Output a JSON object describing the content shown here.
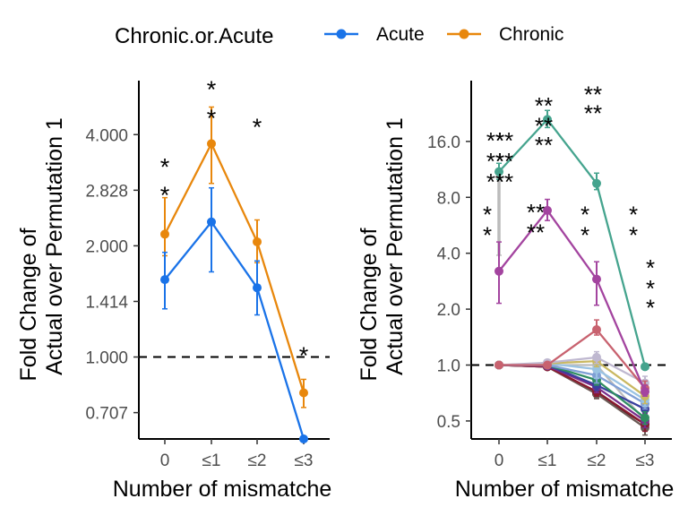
{
  "legend": {
    "title": "Chronic.or.Acute",
    "items": [
      {
        "label": "Acute",
        "color": "#1A73E8"
      },
      {
        "label": "Chronic",
        "color": "#E8870C"
      }
    ]
  },
  "chart_data": [
    {
      "type": "line",
      "xlabel": "Number of mismatche",
      "ylabel": [
        "Fold Change of",
        "Actual over Permutation 1"
      ],
      "y_scale": "log2",
      "ylim": [
        0.6,
        5.6
      ],
      "x": [
        "0",
        "≤1",
        "≤2",
        "≤3"
      ],
      "y_ticks": [
        0.707,
        1.0,
        1.414,
        2.0,
        2.828,
        4.0
      ],
      "y_tick_labels": [
        "0.707",
        "1.000",
        "1.414",
        "2.000",
        "2.828",
        "4.000"
      ],
      "reference_line": 1.0,
      "series": [
        {
          "name": "Acute",
          "color": "#1A73E8",
          "values": [
            1.62,
            2.32,
            1.54,
            0.6
          ],
          "errors_low": [
            1.35,
            1.7,
            1.3,
            0.6
          ],
          "errors_high": [
            1.92,
            2.87,
            1.82,
            0.6
          ]
        },
        {
          "name": "Chronic",
          "color": "#E8870C",
          "values": [
            2.15,
            3.78,
            2.05,
            0.8
          ],
          "errors_low": [
            1.88,
            2.95,
            1.8,
            0.73
          ],
          "errors_high": [
            2.7,
            4.75,
            2.35,
            0.87
          ]
        }
      ],
      "annotations": [
        {
          "x": "0",
          "y": 3.4,
          "text": "*"
        },
        {
          "x": "0",
          "y": 2.85,
          "text": "*"
        },
        {
          "x": "≤1",
          "y": 5.5,
          "text": "*"
        },
        {
          "x": "≤1",
          "y": 4.6,
          "text": "*"
        },
        {
          "x": "≤2",
          "y": 4.35,
          "text": "*"
        },
        {
          "x": "≤3",
          "y": 1.05,
          "text": "*"
        }
      ]
    },
    {
      "type": "line",
      "xlabel": "Number of mismatche",
      "ylabel": [
        "Fold Change of",
        "Actual over Permutation 1"
      ],
      "y_scale": "log2",
      "ylim": [
        0.4,
        34
      ],
      "x": [
        "0",
        "≤1",
        "≤2",
        "≤3"
      ],
      "y_ticks": [
        0.5,
        1.0,
        2.0,
        4.0,
        8.0,
        16.0
      ],
      "y_tick_labels": [
        "0.5",
        "1.0",
        "2.0",
        "4.0",
        "8.0",
        "16.0"
      ],
      "reference_line": 1.0,
      "series": [
        {
          "color": "#45A48E",
          "values": [
            11.0,
            21.0,
            9.5,
            0.98
          ],
          "errors_low": [
            10.0,
            19.0,
            8.8,
            0.98
          ],
          "errors_high": [
            12.2,
            23.5,
            10.8,
            0.98
          ]
        },
        {
          "color": "#A3449F",
          "values": [
            3.2,
            6.8,
            2.9,
            0.72
          ],
          "errors_low": [
            2.15,
            6.0,
            2.1,
            0.68
          ],
          "errors_high": [
            4.6,
            7.8,
            3.6,
            0.78
          ]
        },
        {
          "color": "#C8626F",
          "values": [
            1.0,
            1.0,
            1.55,
            0.75
          ],
          "errors_low": [
            1.0,
            1.0,
            1.45,
            0.7
          ],
          "errors_high": [
            1.0,
            1.0,
            1.75,
            0.82
          ]
        },
        {
          "color": "#BFB8D0",
          "values": [
            1.0,
            1.03,
            1.1,
            0.8
          ],
          "errors_low": [
            1.0,
            1.0,
            1.02,
            0.74
          ],
          "errors_high": [
            1.0,
            1.06,
            1.18,
            0.87
          ]
        },
        {
          "color": "#C9B861",
          "values": [
            1.0,
            1.02,
            1.05,
            0.68
          ],
          "errors_low": [
            1.0,
            1.0,
            0.98,
            0.62
          ],
          "errors_high": [
            1.0,
            1.04,
            1.12,
            0.74
          ]
        },
        {
          "color": "#9AC3E3",
          "values": [
            1.0,
            1.02,
            0.95,
            0.65
          ],
          "errors_low": [
            1.0,
            1.0,
            0.85,
            0.6
          ],
          "errors_high": [
            1.0,
            1.04,
            1.05,
            0.7
          ]
        },
        {
          "color": "#7F9FD5",
          "values": [
            1.0,
            1.0,
            0.88,
            0.62
          ],
          "errors_low": [
            1.0,
            1.0,
            0.8,
            0.58
          ],
          "errors_high": [
            1.0,
            1.0,
            0.95,
            0.66
          ]
        },
        {
          "color": "#2F8D62",
          "values": [
            1.0,
            1.0,
            0.83,
            0.52
          ],
          "errors_low": [
            1.0,
            1.0,
            0.78,
            0.48
          ],
          "errors_high": [
            1.0,
            1.0,
            0.9,
            0.56
          ]
        },
        {
          "color": "#3A3F9E",
          "values": [
            1.0,
            1.0,
            0.78,
            0.58
          ],
          "errors_low": [
            1.0,
            1.0,
            0.73,
            0.54
          ],
          "errors_high": [
            1.0,
            1.0,
            0.84,
            0.62
          ]
        },
        {
          "color": "#7A2E8C",
          "values": [
            1.0,
            0.99,
            0.76,
            0.5
          ],
          "errors_low": [
            1.0,
            0.97,
            0.71,
            0.46
          ],
          "errors_high": [
            1.0,
            1.01,
            0.81,
            0.55
          ]
        },
        {
          "color": "#8A1B2E",
          "values": [
            1.0,
            0.98,
            0.72,
            0.48
          ],
          "errors_low": [
            1.0,
            0.96,
            0.68,
            0.44
          ],
          "errors_high": [
            1.0,
            1.0,
            0.77,
            0.52
          ]
        },
        {
          "color": "#6B5A55",
          "values": [
            1.0,
            0.98,
            0.7,
            0.46
          ],
          "errors_low": [
            1.0,
            0.96,
            0.66,
            0.42
          ],
          "errors_high": [
            1.0,
            1.0,
            0.74,
            0.5
          ]
        },
        {
          "color": "#5A0E18",
          "values": [
            1.0,
            0.98,
            0.7,
            0.48
          ],
          "errors_low": [
            1.0,
            0.96,
            0.66,
            0.45
          ],
          "errors_high": [
            1.0,
            1.0,
            0.74,
            0.51
          ]
        },
        {
          "color": "#BBBBBB",
          "values": [
            1.0,
            1.0,
            1.0,
            0.5
          ],
          "errors_low": [
            3.9,
            1.0,
            1.0,
            0.45
          ],
          "errors_high": [
            10.8,
            1.0,
            1.0,
            0.56
          ]
        }
      ],
      "annotations": [
        {
          "x": "0",
          "y": 17.5,
          "text": "**",
          "color": "#A3449F"
        },
        {
          "x": "0",
          "y": 13.5,
          "text": "**",
          "color": "#A3449F"
        },
        {
          "x": "0",
          "y": 10.5,
          "text": "**",
          "color": "#A3449F"
        },
        {
          "x": "0",
          "y": 17.5,
          "text": "**",
          "color": "#45A48E"
        },
        {
          "x": "0",
          "y": 13.5,
          "text": "**",
          "color": "#45A48E"
        },
        {
          "x": "0",
          "y": 10.5,
          "text": "**",
          "color": "#45A48E"
        },
        {
          "x": "≤1",
          "y": 27,
          "text": "**",
          "color": "#A3449F"
        },
        {
          "x": "≤1",
          "y": 21,
          "text": "**",
          "color": "#A3449F"
        },
        {
          "x": "≤1",
          "y": 16.5,
          "text": "**",
          "color": "#A3449F"
        },
        {
          "x": "≤2",
          "y": 31,
          "text": "**",
          "color": "#A3449F"
        },
        {
          "x": "≤2",
          "y": 24.5,
          "text": "**",
          "color": "#A3449F"
        },
        {
          "x": "0",
          "y": 7.0,
          "text": "*",
          "color": "#BBBBBB"
        },
        {
          "x": "0",
          "y": 5.4,
          "text": "*",
          "color": "#BBBBBB"
        },
        {
          "x": "≤1",
          "y": 7.2,
          "text": "**",
          "color": "#BBBBBB"
        },
        {
          "x": "≤1",
          "y": 5.6,
          "text": "**",
          "color": "#BBBBBB"
        },
        {
          "x": "≤2",
          "y": 7.0,
          "text": "*",
          "color": "#BBBBBB"
        },
        {
          "x": "≤2",
          "y": 5.4,
          "text": "*",
          "color": "#BBBBBB"
        },
        {
          "x": "≤3",
          "y": 7.0,
          "text": "*",
          "color": "#BBBBBB"
        },
        {
          "x": "≤3",
          "y": 5.4,
          "text": "*",
          "color": "#BBBBBB"
        },
        {
          "x": "≤3",
          "y": 3.6,
          "text": "*",
          "color": "#45A48E"
        },
        {
          "x": "≤3",
          "y": 2.8,
          "text": "*",
          "color": "#45A48E"
        },
        {
          "x": "≤3",
          "y": 2.2,
          "text": "*",
          "color": "#45A48E"
        }
      ]
    }
  ]
}
